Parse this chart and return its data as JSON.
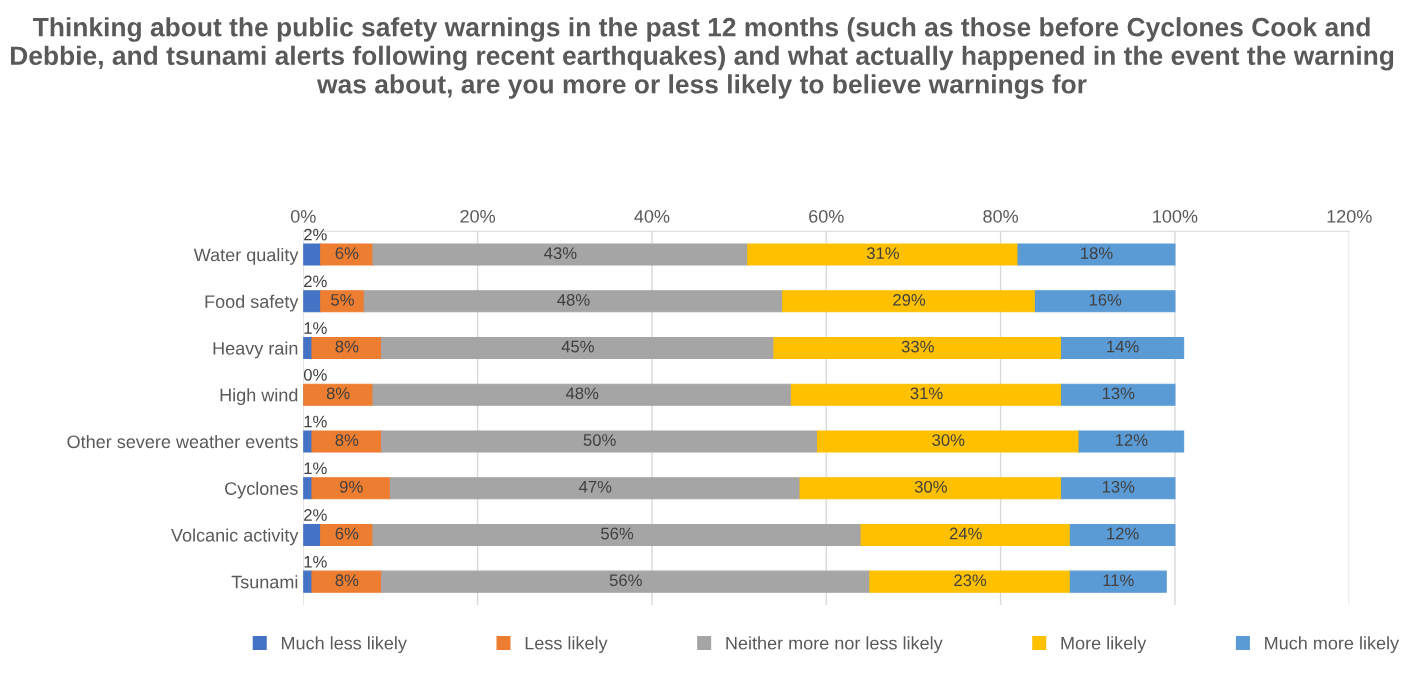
{
  "chart_data": {
    "type": "bar",
    "orientation": "horizontal",
    "stacked": true,
    "title": "Thinking about the public safety warnings in the past 12 months (such as those before Cyclones Cook and Debbie, and tsunami alerts following recent earthquakes) and what actually happened in the event the warning was about, are you more or less likely to believe warnings for",
    "categories": [
      "Water quality",
      "Food safety",
      "Heavy rain",
      "High wind",
      "Other severe weather events",
      "Cyclones",
      "Volcanic activity",
      "Tsunami"
    ],
    "series": [
      {
        "name": "Much less likely",
        "color": "#4472c4",
        "values": [
          2,
          2,
          1,
          0,
          1,
          1,
          2,
          1
        ],
        "value_labels": [
          "2%",
          "2%",
          "1%",
          "0%",
          "1%",
          "1%",
          "2%",
          "1%"
        ]
      },
      {
        "name": "Less likely",
        "color": "#ed7d31",
        "values": [
          6,
          5,
          8,
          8,
          8,
          9,
          6,
          8
        ],
        "value_labels": [
          "6%",
          "5%",
          "8%",
          "8%",
          "8%",
          "9%",
          "6%",
          "8%"
        ]
      },
      {
        "name": "Neither more nor less likely",
        "color": "#a5a5a5",
        "values": [
          43,
          48,
          45,
          48,
          50,
          47,
          56,
          56
        ],
        "value_labels": [
          "43%",
          "48%",
          "45%",
          "48%",
          "50%",
          "47%",
          "56%",
          "56%"
        ]
      },
      {
        "name": "More likely",
        "color": "#ffc000",
        "values": [
          31,
          29,
          33,
          31,
          30,
          30,
          24,
          23
        ],
        "value_labels": [
          "31%",
          "29%",
          "33%",
          "31%",
          "30%",
          "30%",
          "24%",
          "23%"
        ]
      },
      {
        "name": "Much more likely",
        "color": "#5b9bd5",
        "values": [
          18,
          16,
          14,
          13,
          12,
          13,
          12,
          11
        ],
        "value_labels": [
          "18%",
          "16%",
          "14%",
          "13%",
          "12%",
          "13%",
          "12%",
          "11%"
        ]
      }
    ],
    "xlim": [
      0,
      120
    ],
    "xticks": [
      {
        "value": 0,
        "label": "0%"
      },
      {
        "value": 20,
        "label": "20%"
      },
      {
        "value": 40,
        "label": "40%"
      },
      {
        "value": 60,
        "label": "60%"
      },
      {
        "value": 80,
        "label": "80%"
      },
      {
        "value": 100,
        "label": "100%"
      },
      {
        "value": 120,
        "label": "120%"
      }
    ],
    "grid": "x",
    "legend": "bottom"
  }
}
